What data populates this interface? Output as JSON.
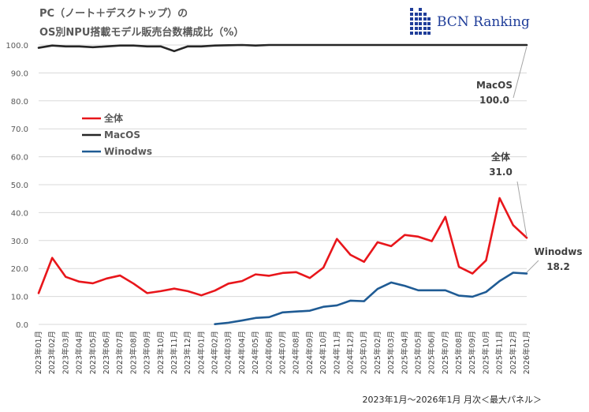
{
  "title_line1": "PC（ノート＋デスクトップ）の",
  "title_line2": "OS別NPU搭載モデル販売台数構成比（%）",
  "logo_text": "BCN Ranking",
  "footer_note": "2023年1月～2026年1月 月次＜最大パネル＞",
  "chart_data": {
    "type": "line",
    "title": "PC（ノート＋デスクトップ）の OS別NPU搭載モデル販売台数構成比（%）",
    "xlabel": "",
    "ylabel": "",
    "ylim": [
      0,
      100
    ],
    "yticks": [
      "0.0",
      "10.0",
      "20.0",
      "30.0",
      "40.0",
      "50.0",
      "60.0",
      "70.0",
      "80.0",
      "90.0",
      "100.0"
    ],
    "grid": "horizontal",
    "legend_position": "left-middle",
    "categories": [
      "2023年01月",
      "2023年02月",
      "2023年03月",
      "2023年04月",
      "2023年05月",
      "2023年06月",
      "2023年07月",
      "2023年08月",
      "2023年09月",
      "2023年10月",
      "2023年11月",
      "2023年12月",
      "2024年01月",
      "2024年02月",
      "2024年03月",
      "2024年04月",
      "2024年05月",
      "2024年06月",
      "2024年07月",
      "2024年08月",
      "2024年09月",
      "2024年10月",
      "2024年11月",
      "2024年12月",
      "2025年01月",
      "2025年02月",
      "2025年03月",
      "2025年04月",
      "2025年05月",
      "2025年06月",
      "2025年07月",
      "2025年08月",
      "2025年09月",
      "2025年10月",
      "2025年11月",
      "2025年12月",
      "2026年01月"
    ],
    "series": [
      {
        "name": "全体",
        "color": "#e8161b",
        "values": [
          11.2,
          23.8,
          17.0,
          15.3,
          14.7,
          16.4,
          17.5,
          14.6,
          11.2,
          11.9,
          12.8,
          11.9,
          10.4,
          12.1,
          14.6,
          15.5,
          17.9,
          17.4,
          18.4,
          18.7,
          16.6,
          20.3,
          30.6,
          24.9,
          22.4,
          29.4,
          28.0,
          32.0,
          31.4,
          29.8,
          38.5,
          20.6,
          18.2,
          22.9,
          45.2,
          35.5,
          31.0
        ]
      },
      {
        "name": "MacOS",
        "color": "#262626",
        "values": [
          99.0,
          99.8,
          99.5,
          99.5,
          99.2,
          99.5,
          99.8,
          99.8,
          99.5,
          99.5,
          97.8,
          99.5,
          99.5,
          99.8,
          99.9,
          100.0,
          99.8,
          100.0,
          100.0,
          100.0,
          100.0,
          100.0,
          100.0,
          100.0,
          100.0,
          100.0,
          100.0,
          100.0,
          100.0,
          100.0,
          100.0,
          100.0,
          100.0,
          100.0,
          100.0,
          100.0,
          100.0
        ]
      },
      {
        "name": "Winodws",
        "color": "#1f5b94",
        "values": [
          null,
          null,
          null,
          null,
          null,
          null,
          null,
          null,
          null,
          null,
          null,
          null,
          null,
          0.1,
          0.6,
          1.4,
          2.3,
          2.6,
          4.3,
          4.6,
          4.9,
          6.3,
          6.8,
          8.5,
          8.3,
          12.7,
          15.0,
          13.8,
          12.2,
          12.2,
          12.2,
          10.3,
          9.9,
          11.6,
          15.5,
          18.5,
          18.2
        ]
      }
    ],
    "annotations": [
      {
        "series": "MacOS",
        "label": "MacOS",
        "value": "100.0"
      },
      {
        "series": "全体",
        "label": "全体",
        "value": "31.0"
      },
      {
        "series": "Winodws",
        "label": "Winodws",
        "value": "18.2"
      }
    ]
  }
}
